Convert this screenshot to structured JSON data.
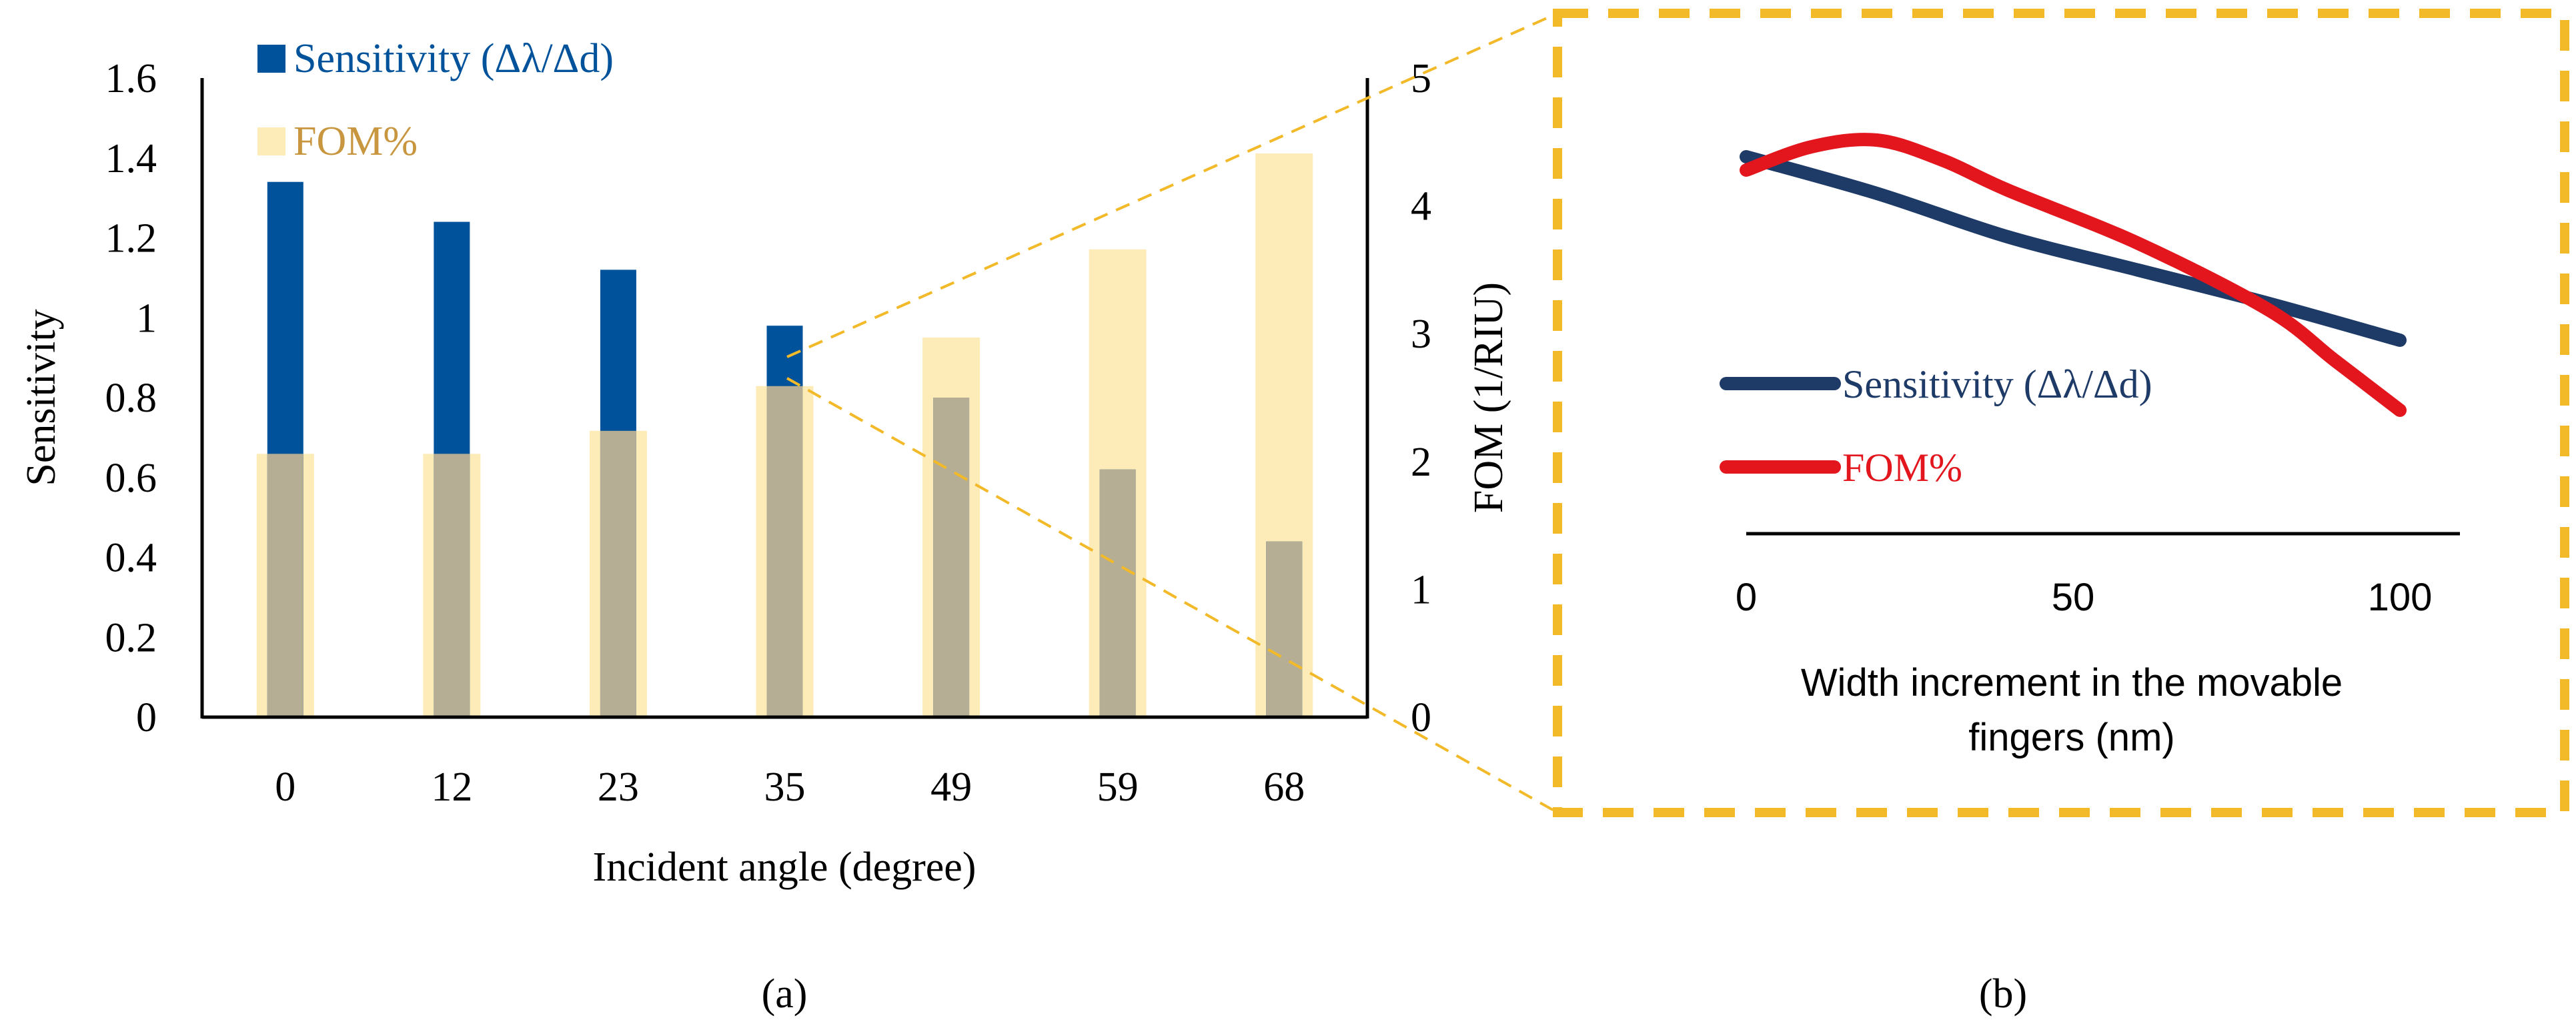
{
  "colors": {
    "sensitivity": "#00529b",
    "fom_bar": "#fdebb8",
    "overlap": "#b5ae95",
    "dashed": "#f2b929",
    "sens_line": "#1e3a66",
    "fom_line": "#e3161e",
    "fom_legend_text": "#c8963e",
    "axis": "#000000"
  },
  "chart_data": [
    {
      "type": "bar",
      "panel_label": "(a)",
      "categories": [
        "0",
        "12",
        "23",
        "35",
        "49",
        "59",
        "68"
      ],
      "xlabel": "Incident angle (degree)",
      "ylabel": "Sensitivity",
      "y2label": "FOM (1/RIU)",
      "ylim": [
        0,
        1.6
      ],
      "y2lim": [
        0,
        5
      ],
      "yticks": [
        "0",
        "0.2",
        "0.4",
        "0.6",
        "0.8",
        "1",
        "1.2",
        "1.4",
        "1.6"
      ],
      "y2ticks": [
        "0",
        "1",
        "2",
        "3",
        "4",
        "5"
      ],
      "series": [
        {
          "name": "Sensitivity (Δλ/Δd)",
          "axis": "left",
          "values": [
            1.34,
            1.24,
            1.12,
            0.98,
            0.8,
            0.62,
            0.44
          ]
        },
        {
          "name": "FOM%",
          "axis": "right",
          "values": [
            2.06,
            2.06,
            2.24,
            2.59,
            2.97,
            3.66,
            4.41
          ]
        }
      ],
      "legend": [
        {
          "label": "Sensitivity (Δλ/Δd)",
          "series": 0
        },
        {
          "label": "FOM%",
          "series": 1
        }
      ]
    },
    {
      "type": "line",
      "panel_label": "(b)",
      "xlabel_lines": [
        "Width increment in the movable",
        "fingers (nm)"
      ],
      "xticks": [
        "0",
        "50",
        "100"
      ],
      "xlim": [
        0,
        110
      ],
      "ylim": [
        0,
        1
      ],
      "series": [
        {
          "name": "Sensitivity (Δλ/Δd)",
          "x": [
            0,
            20,
            40,
            60,
            80,
            100
          ],
          "y": [
            0.96,
            0.85,
            0.72,
            0.62,
            0.52,
            0.41
          ]
        },
        {
          "name": "FOM%",
          "x": [
            0,
            10,
            20,
            30,
            40,
            60,
            80,
            90,
            100
          ],
          "y": [
            0.92,
            0.99,
            1.01,
            0.95,
            0.86,
            0.7,
            0.5,
            0.35,
            0.2
          ]
        }
      ]
    }
  ]
}
